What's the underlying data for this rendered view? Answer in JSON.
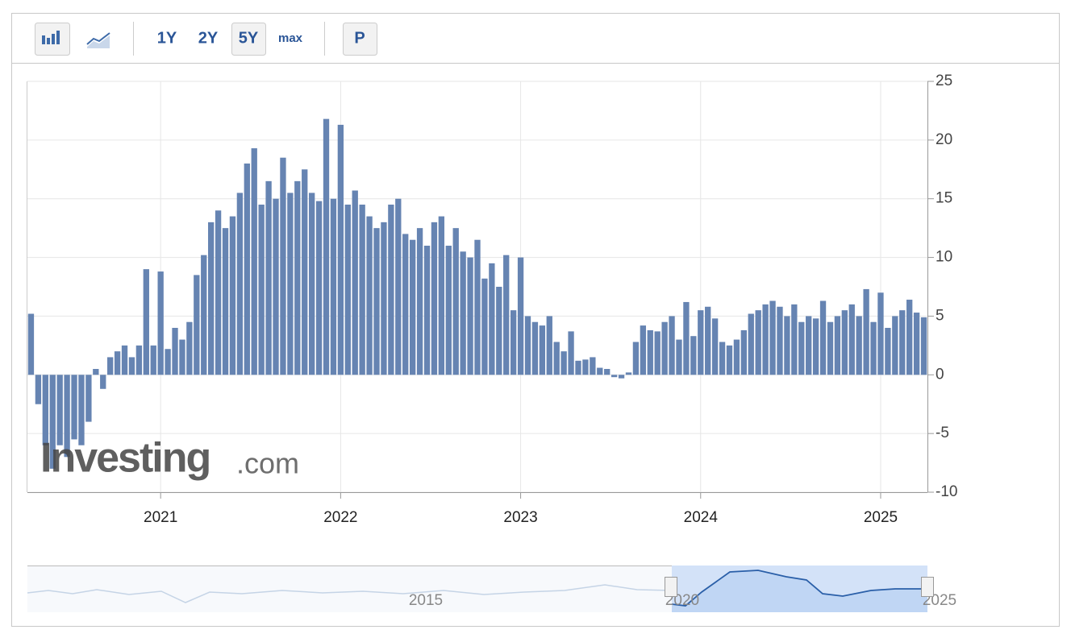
{
  "toolbar": {
    "buttons": [
      "1Y",
      "2Y",
      "5Y",
      "max",
      "P"
    ]
  },
  "watermark": {
    "brand": "Investing",
    "suffix": ".com"
  },
  "navigator": {
    "labels": [
      "2015",
      "2020",
      "2025"
    ]
  },
  "chart_data": {
    "type": "bar",
    "color": "#6684b2",
    "grid": true,
    "xlim": [
      2020.26,
      2025.26
    ],
    "xticks": [
      2021,
      2022,
      2023,
      2024,
      2025
    ],
    "ylim": [
      -10,
      25
    ],
    "yticks": [
      -10,
      -5,
      0,
      5,
      10,
      15,
      20,
      25
    ],
    "x": [
      2020.28,
      2020.32,
      2020.36,
      2020.4,
      2020.44,
      2020.48,
      2020.52,
      2020.56,
      2020.6,
      2020.64,
      2020.68,
      2020.72,
      2020.76,
      2020.8,
      2020.84,
      2020.88,
      2020.92,
      2020.96,
      2021.0,
      2021.04,
      2021.08,
      2021.12,
      2021.16,
      2021.2,
      2021.24,
      2021.28,
      2021.32,
      2021.36,
      2021.4,
      2021.44,
      2021.48,
      2021.52,
      2021.56,
      2021.6,
      2021.64,
      2021.68,
      2021.72,
      2021.76,
      2021.8,
      2021.84,
      2021.88,
      2021.92,
      2021.96,
      2022.0,
      2022.04,
      2022.08,
      2022.12,
      2022.16,
      2022.2,
      2022.24,
      2022.28,
      2022.32,
      2022.36,
      2022.4,
      2022.44,
      2022.48,
      2022.52,
      2022.56,
      2022.6,
      2022.64,
      2022.68,
      2022.72,
      2022.76,
      2022.8,
      2022.84,
      2022.88,
      2022.92,
      2022.96,
      2023.0,
      2023.04,
      2023.08,
      2023.12,
      2023.16,
      2023.2,
      2023.24,
      2023.28,
      2023.32,
      2023.36,
      2023.4,
      2023.44,
      2023.48,
      2023.52,
      2023.56,
      2023.6,
      2023.64,
      2023.68,
      2023.72,
      2023.76,
      2023.8,
      2023.84,
      2023.88,
      2023.92,
      2023.96,
      2024.0,
      2024.04,
      2024.08,
      2024.12,
      2024.16,
      2024.2,
      2024.24,
      2024.28,
      2024.32,
      2024.36,
      2024.4,
      2024.44,
      2024.48,
      2024.52,
      2024.56,
      2024.6,
      2024.64,
      2024.68,
      2024.72,
      2024.76,
      2024.8,
      2024.84,
      2024.88,
      2024.92,
      2024.96,
      2025.0,
      2025.04,
      2025.08,
      2025.12,
      2025.16,
      2025.2,
      2025.24
    ],
    "values": [
      5.2,
      -2.5,
      -6,
      -8,
      -6,
      -7,
      -5.5,
      -6,
      -4,
      0.5,
      -1.2,
      1.5,
      2,
      2.5,
      1.5,
      2.5,
      9,
      2.5,
      8.8,
      2.2,
      4,
      3,
      4.5,
      8.5,
      10.2,
      13,
      14,
      12.5,
      13.5,
      15.5,
      18,
      19.3,
      14.5,
      16.5,
      15,
      18.5,
      15.5,
      16.5,
      17.5,
      15.5,
      14.8,
      21.8,
      15,
      21.3,
      14.5,
      15.7,
      14.5,
      13.5,
      12.5,
      13,
      14.5,
      15,
      12,
      11.5,
      12.5,
      11,
      13,
      13.5,
      11,
      12.5,
      10.5,
      10,
      11.5,
      8.2,
      9.5,
      7.5,
      10.2,
      5.5,
      10,
      5,
      4.5,
      4.2,
      5,
      2.8,
      2,
      3.7,
      1.2,
      1.3,
      1.5,
      0.6,
      0.5,
      -0.2,
      -0.3,
      0.2,
      2.8,
      4.2,
      3.8,
      3.7,
      4.5,
      5,
      3,
      6.2,
      3.3,
      5.5,
      5.8,
      4.8,
      2.8,
      2.5,
      3,
      3.8,
      5.2,
      5.5,
      6,
      6.3,
      5.8,
      5,
      6,
      4.5,
      5,
      4.8,
      6.3,
      4.5,
      5,
      5.5,
      6,
      5,
      7.3,
      4.5,
      7,
      4,
      5,
      5.5,
      6.4,
      5.3,
      4.9
    ]
  }
}
